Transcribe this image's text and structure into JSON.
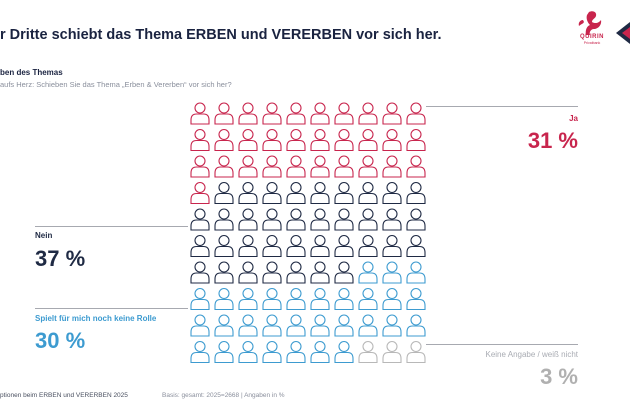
{
  "header": {
    "title": "r Dritte schiebt das Thema ERBEN und VERERBEN vor sich her.",
    "logo_text": "QUIRIN",
    "logo_subtext": "Privatbank",
    "brand_color": "#c8254d"
  },
  "section": {
    "subtitle": "ben des Themas",
    "question": "aufs Herz: Schieben Sie das Thema „Erben & Vererben“ vor sich her?"
  },
  "chart_data": {
    "type": "icon-array",
    "icons_total": 100,
    "icon_name": "person-icon",
    "categories": [
      "Ja",
      "Nein",
      "Spielt für mich noch keine Rolle",
      "Keine Angabe / weiß nicht"
    ],
    "values": [
      31,
      37,
      30,
      3
    ],
    "value_labels": [
      "31 %",
      "37 %",
      "30 %",
      "3 %"
    ],
    "icon_counts": [
      31,
      36,
      30,
      3
    ],
    "colors": [
      "#c8254d",
      "#1f2a44",
      "#3d9bd0",
      "#b8b8b8"
    ],
    "unit": "%"
  },
  "footer": {
    "left": "ptionen beim ERBEN und VERERBEN 2025",
    "basis": "Basis: gesamt: 2025=2668 | Angaben in %"
  }
}
